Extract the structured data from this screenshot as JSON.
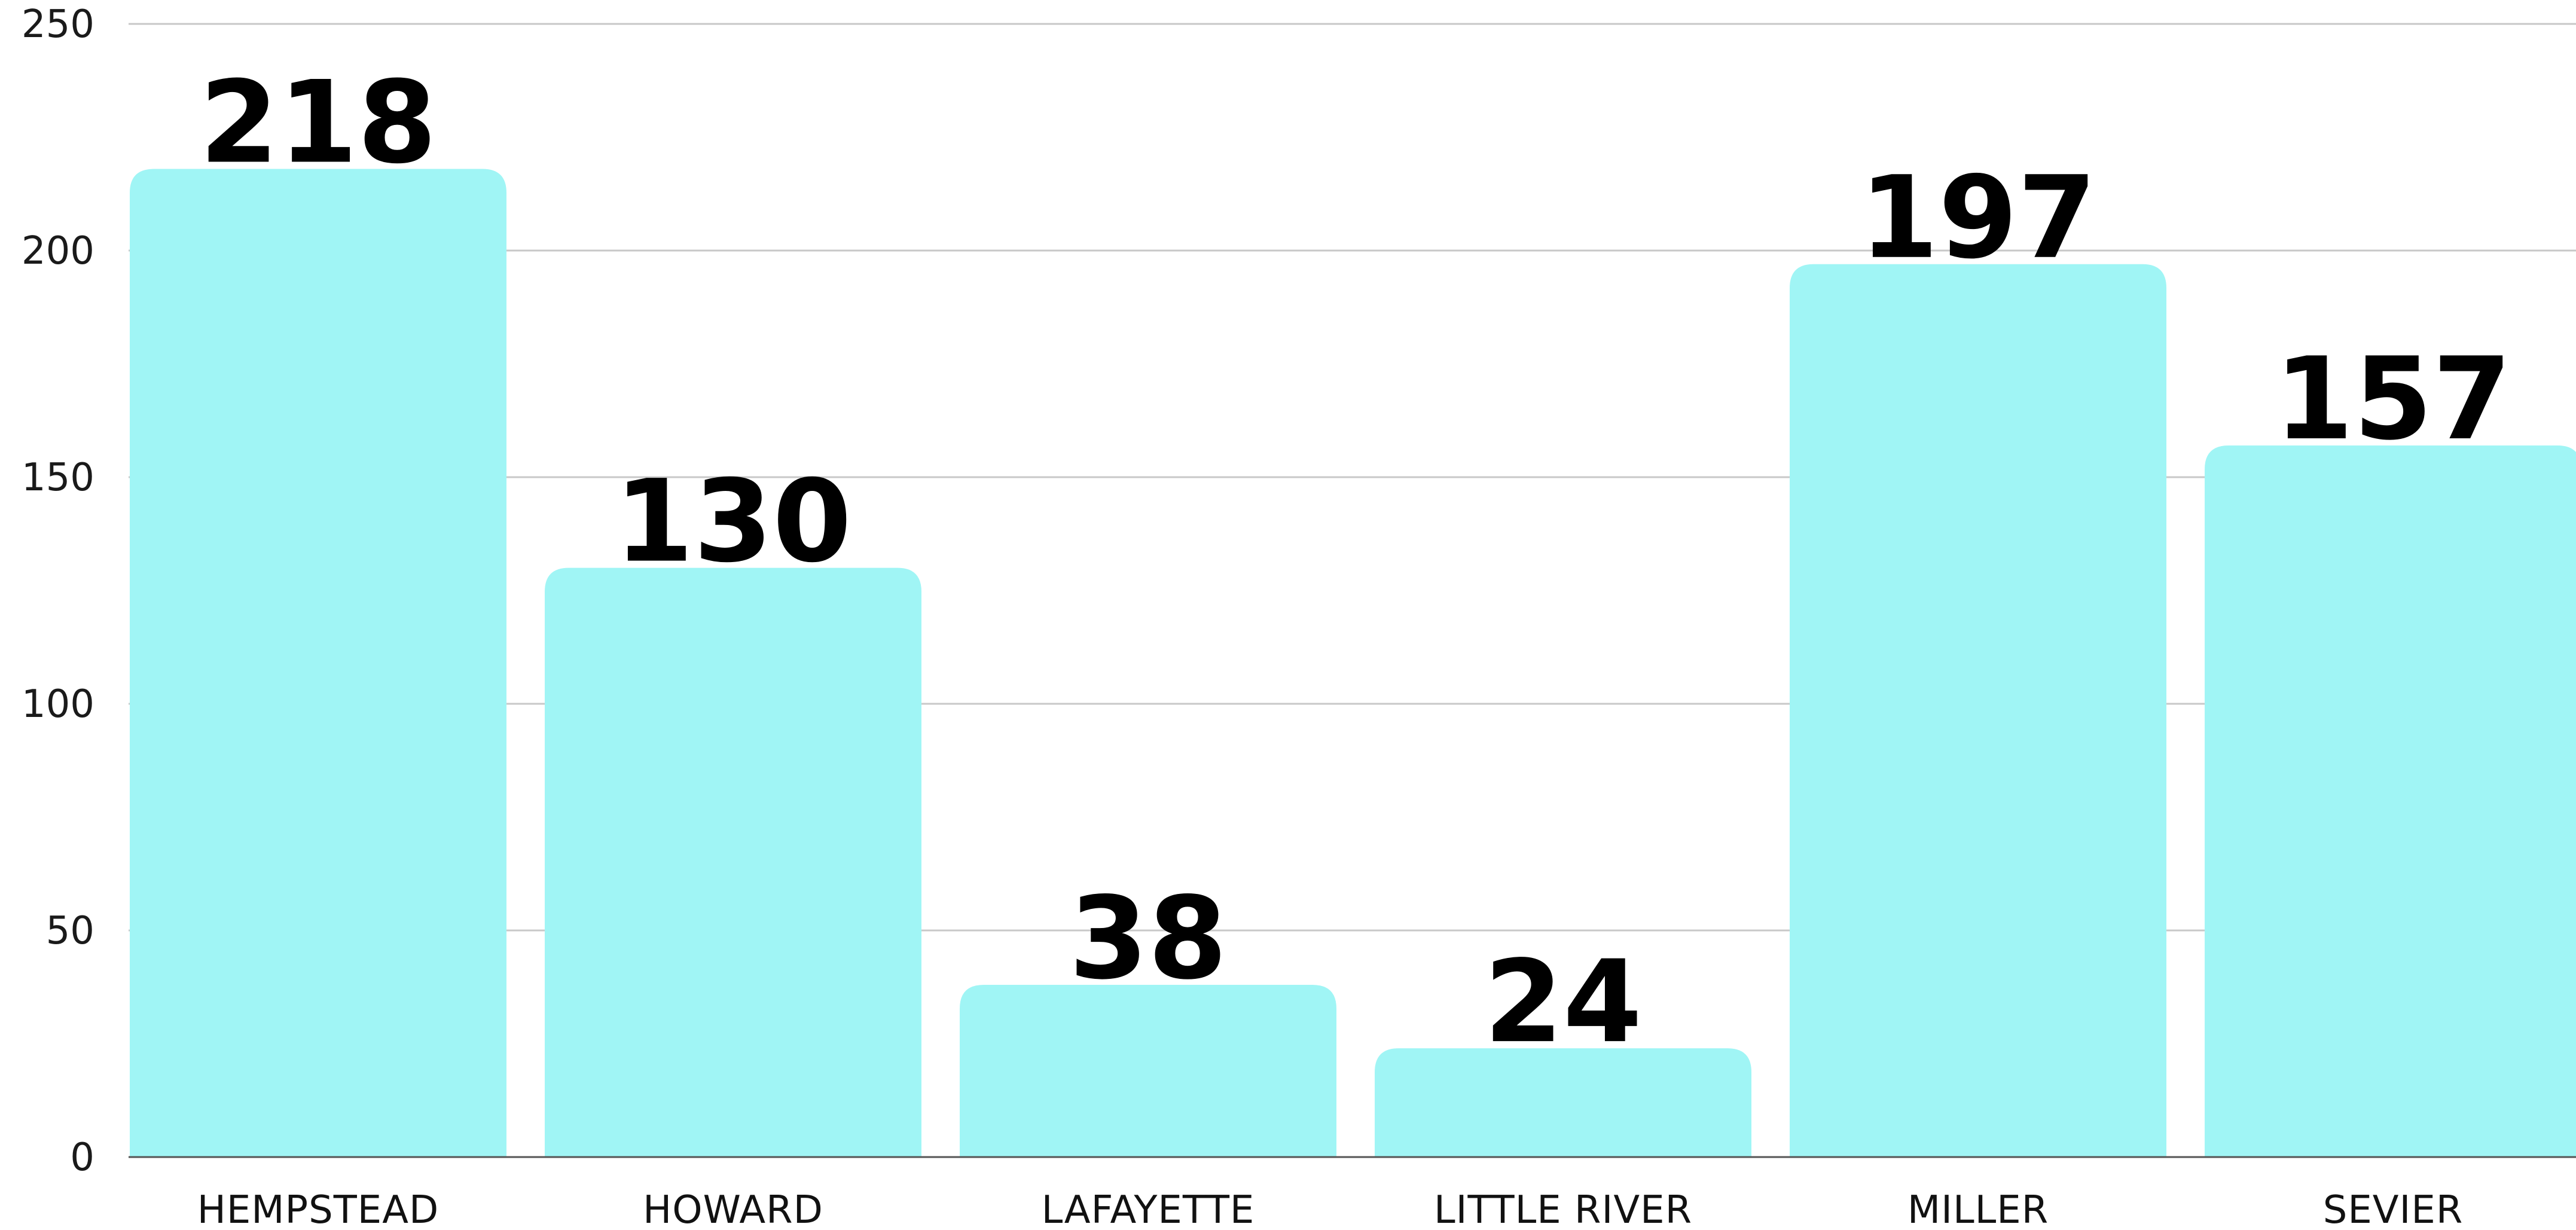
{
  "chart_data": {
    "type": "bar",
    "categories": [
      "HEMPSTEAD",
      "HOWARD",
      "LAFAYETTE",
      "LITTLE RIVER",
      "MILLER",
      "SEVIER"
    ],
    "values": [
      218,
      130,
      38,
      24,
      197,
      157
    ],
    "data_labels": [
      "218",
      "130",
      "38",
      "24",
      "197",
      "157"
    ],
    "ylim": [
      0,
      250
    ],
    "yticks": [
      0,
      50,
      100,
      150,
      200,
      250
    ],
    "title": "",
    "xlabel": "",
    "ylabel": "",
    "grid": true,
    "legend": "none",
    "bar_color": "#a0f5f5",
    "gridline_color": "#c8c8c8",
    "label_color": "#000000"
  }
}
